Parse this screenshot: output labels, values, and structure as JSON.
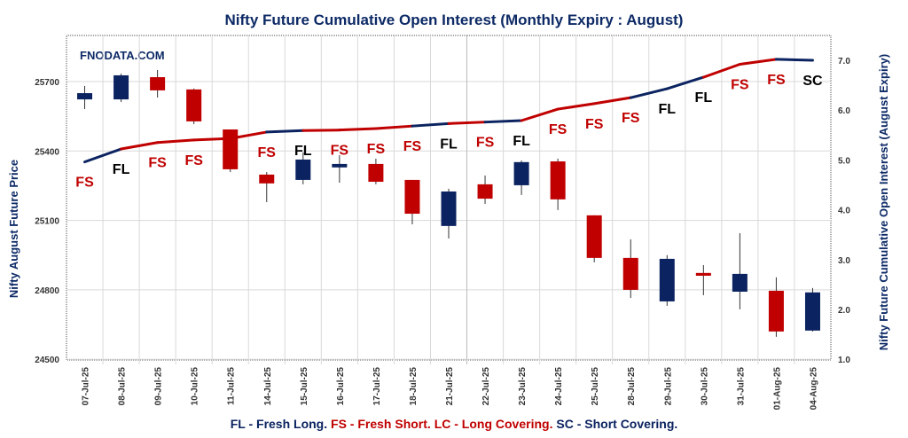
{
  "chart_data": {
    "type": "candlestick-with-line",
    "title": "Nifty Future Cumulative Open Interest (Monthly Expiry : August)",
    "watermark": "FNODATA.COM",
    "ylabel_left": "Nifty August Future Price",
    "ylabel_right": "Nifty Future Cumulative Open Interest (August Expiry)",
    "ylim_left": [
      24500,
      25800
    ],
    "yticks_left": [
      "25700",
      "25400",
      "25100",
      "24800",
      "24500"
    ],
    "ylim_right": [
      1.0,
      7.5
    ],
    "yticks_right": [
      "7.0",
      "6.0",
      "5.0",
      "4.0",
      "3.0",
      "2.0",
      "1.0"
    ],
    "grid": true,
    "categories": [
      "07-Jul-25",
      "08-Jul-25",
      "09-Jul-25",
      "10-Jul-25",
      "11-Jul-25",
      "14-Jul-25",
      "15-Jul-25",
      "16-Jul-25",
      "17-Jul-25",
      "18-Jul-25",
      "21-Jul-25",
      "22-Jul-25",
      "23-Jul-25",
      "24-Jul-25",
      "25-Jul-25",
      "28-Jul-25",
      "29-Jul-25",
      "30-Jul-25",
      "31-Jul-25",
      "01-Aug-25",
      "04-Aug-25"
    ],
    "ohlc": [
      [
        25623,
        25681,
        25581,
        25650
      ],
      [
        25623,
        25734,
        25612,
        25727
      ],
      [
        25719,
        25750,
        25631,
        25662
      ],
      [
        25666,
        25670,
        25516,
        25528
      ],
      [
        25493,
        25493,
        25309,
        25321
      ],
      [
        25298,
        25309,
        25179,
        25260
      ],
      [
        25275,
        25394,
        25256,
        25363
      ],
      [
        25329,
        25382,
        25263,
        25344
      ],
      [
        25344,
        25367,
        25256,
        25267
      ],
      [
        25275,
        25275,
        25083,
        25129
      ],
      [
        25076,
        25237,
        25022,
        25225
      ],
      [
        25256,
        25294,
        25171,
        25194
      ],
      [
        25252,
        25359,
        25210,
        25352
      ],
      [
        25355,
        25367,
        25145,
        25191
      ],
      [
        25122,
        25122,
        24919,
        24938
      ],
      [
        24938,
        25018,
        24765,
        24800
      ],
      [
        24750,
        24950,
        24731,
        24934
      ],
      [
        24873,
        24907,
        24777,
        24861
      ],
      [
        24792,
        25045,
        24716,
        24869
      ],
      [
        24796,
        24854,
        24597,
        24620
      ],
      [
        24624,
        24808,
        24620,
        24789
      ]
    ],
    "open_interest": [
      4.96,
      5.22,
      5.35,
      5.4,
      5.43,
      5.56,
      5.59,
      5.6,
      5.63,
      5.68,
      5.73,
      5.76,
      5.79,
      6.02,
      6.13,
      6.25,
      6.43,
      6.66,
      6.92,
      7.02,
      7.0
    ],
    "signals": [
      "FS",
      "FL",
      "FS",
      "FS",
      "",
      "FS",
      "FL",
      "FS",
      "FS",
      "FS",
      "FL",
      "FS",
      "FL",
      "FS",
      "FS",
      "FS",
      "FL",
      "FL",
      "FS",
      "FS",
      "SC"
    ],
    "colors": {
      "up": "#0b2360",
      "down": "#c00000",
      "FL": "#000000",
      "FS": "#c00000",
      "SC": "#000000",
      "line_FL": "#0b2360",
      "line_FS": "#c00000",
      "line_SC": "#0b2360",
      "title": "#0d2a66"
    }
  },
  "legend": {
    "fl": "FL - Fresh Long.",
    "fs_lc": "FS - Fresh Short. LC - Long Covering.",
    "sc": "SC - Short Covering."
  }
}
